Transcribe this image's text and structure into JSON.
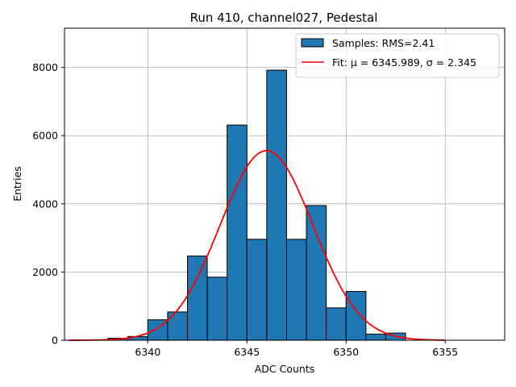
{
  "chart_data": {
    "type": "bar",
    "title": "Run 410, channel027, Pedestal",
    "xlabel": "ADC Counts",
    "ylabel": "Entries",
    "xlim": [
      6335.8,
      6358.0
    ],
    "ylim": [
      0,
      9150
    ],
    "x_ticks": [
      6340,
      6345,
      6350,
      6355
    ],
    "y_ticks": [
      0,
      2000,
      4000,
      6000,
      8000
    ],
    "x_tick_labels": [
      "6340",
      "6345",
      "6350",
      "6355"
    ],
    "y_tick_labels": [
      "0",
      "2000",
      "4000",
      "6000",
      "8000"
    ],
    "grid": true,
    "legend_position": "upper right",
    "bar_color": "#1f77b4",
    "bar_edge_color": "#000000",
    "fit_color": "#ff0000",
    "bins": {
      "left_edges": [
        6337,
        6338,
        6339,
        6340,
        6341,
        6342,
        6343,
        6344,
        6345,
        6346,
        6347,
        6348,
        6349,
        6350,
        6351,
        6352
      ],
      "width": 1,
      "counts": [
        10,
        60,
        110,
        600,
        830,
        2470,
        1850,
        6310,
        2960,
        7920,
        2960,
        3950,
        950,
        1430,
        180,
        210
      ]
    },
    "series": [
      {
        "name": "Samples: RMS=2.41",
        "kind": "histogram"
      },
      {
        "name": "Fit: μ = 6345.989, σ = 2.345",
        "kind": "line",
        "x_range": [
          6336,
          6355
        ],
        "amplitude": 5560,
        "mu": 6345.989,
        "sigma": 2.345
      }
    ]
  }
}
